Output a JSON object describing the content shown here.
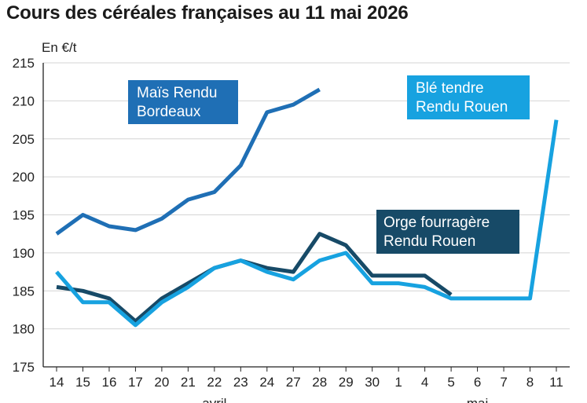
{
  "chart_data": {
    "type": "line",
    "title": "Cours des céréales françaises au 11 mai 2026",
    "ylabel": "En €/t",
    "xlabel": "",
    "ylim": [
      175,
      215
    ],
    "yticks": [
      175,
      180,
      185,
      190,
      195,
      200,
      205,
      210,
      215
    ],
    "categories": [
      "14",
      "15",
      "16",
      "17",
      "20",
      "21",
      "22",
      "23",
      "24",
      "27",
      "28",
      "29",
      "30",
      "1",
      "4",
      "5",
      "6",
      "7",
      "8",
      "11"
    ],
    "month_labels": [
      {
        "text": "avril",
        "at_category": 6
      },
      {
        "text": "mai",
        "at_category": 16
      }
    ],
    "grid": "horizontal",
    "series": [
      {
        "name": "Maïs Rendu Bordeaux",
        "label_lines": [
          "Maïs Rendu",
          "Bordeaux"
        ],
        "color": "#1f6fb5",
        "values": [
          192.5,
          195,
          193.5,
          193,
          194.5,
          197,
          198,
          201.5,
          208.5,
          209.5,
          211.5,
          null,
          null,
          null,
          null,
          null,
          null,
          null,
          null,
          null
        ]
      },
      {
        "name": "Orge fourragère Rendu Rouen",
        "label_lines": [
          "Orge fourragère",
          "Rendu Rouen"
        ],
        "color": "#174a67",
        "values": [
          185.5,
          185,
          184,
          181,
          184,
          186,
          188,
          189,
          188,
          187.5,
          192.5,
          191,
          187,
          187,
          187,
          184.5,
          null,
          null,
          null,
          null
        ]
      },
      {
        "name": "Blé tendre Rendu Rouen",
        "label_lines": [
          "Blé tendre",
          "Rendu Rouen"
        ],
        "color": "#17a2e0",
        "values": [
          187.5,
          183.5,
          183.5,
          180.5,
          183.5,
          185.5,
          188,
          189,
          187.5,
          186.5,
          189,
          190,
          186,
          186,
          185.5,
          184,
          184,
          184,
          184,
          207.5
        ]
      }
    ]
  }
}
